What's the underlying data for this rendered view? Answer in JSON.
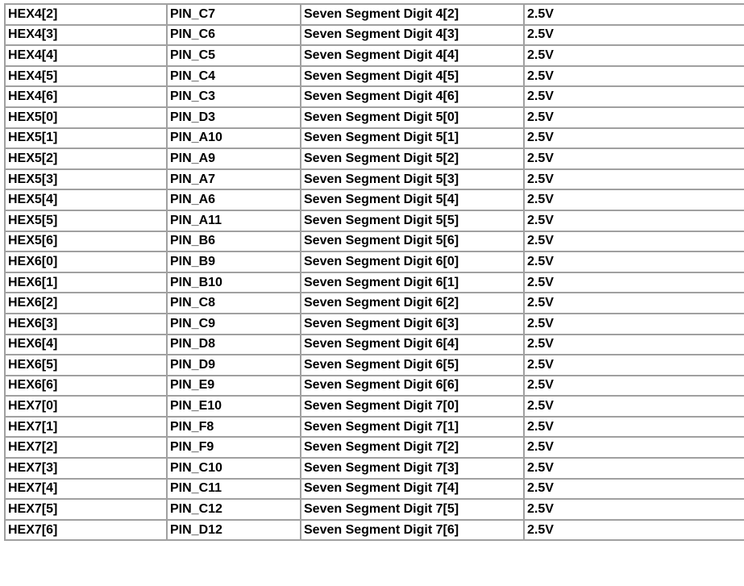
{
  "table": {
    "rows": [
      {
        "signal": "HEX4[2]",
        "pin": "PIN_C7",
        "description": "Seven Segment Digit 4[2]",
        "io_standard": "2.5V"
      },
      {
        "signal": "HEX4[3]",
        "pin": "PIN_C6",
        "description": "Seven Segment Digit 4[3]",
        "io_standard": "2.5V"
      },
      {
        "signal": "HEX4[4]",
        "pin": "PIN_C5",
        "description": "Seven Segment Digit 4[4]",
        "io_standard": "2.5V"
      },
      {
        "signal": "HEX4[5]",
        "pin": "PIN_C4",
        "description": "Seven Segment Digit 4[5]",
        "io_standard": "2.5V"
      },
      {
        "signal": "HEX4[6]",
        "pin": "PIN_C3",
        "description": "Seven Segment Digit 4[6]",
        "io_standard": "2.5V"
      },
      {
        "signal": "HEX5[0]",
        "pin": "PIN_D3",
        "description": "Seven Segment Digit 5[0]",
        "io_standard": "2.5V"
      },
      {
        "signal": "HEX5[1]",
        "pin": "PIN_A10",
        "description": "Seven Segment Digit 5[1]",
        "io_standard": "2.5V"
      },
      {
        "signal": "HEX5[2]",
        "pin": "PIN_A9",
        "description": "Seven Segment Digit 5[2]",
        "io_standard": "2.5V"
      },
      {
        "signal": "HEX5[3]",
        "pin": "PIN_A7",
        "description": "Seven Segment Digit 5[3]",
        "io_standard": "2.5V"
      },
      {
        "signal": "HEX5[4]",
        "pin": "PIN_A6",
        "description": "Seven Segment Digit 5[4]",
        "io_standard": "2.5V"
      },
      {
        "signal": "HEX5[5]",
        "pin": "PIN_A11",
        "description": "Seven Segment Digit 5[5]",
        "io_standard": "2.5V"
      },
      {
        "signal": "HEX5[6]",
        "pin": "PIN_B6",
        "description": "Seven Segment Digit 5[6]",
        "io_standard": "2.5V"
      },
      {
        "signal": "HEX6[0]",
        "pin": "PIN_B9",
        "description": "Seven Segment Digit 6[0]",
        "io_standard": "2.5V"
      },
      {
        "signal": "HEX6[1]",
        "pin": "PIN_B10",
        "description": "Seven Segment Digit 6[1]",
        "io_standard": "2.5V"
      },
      {
        "signal": "HEX6[2]",
        "pin": "PIN_C8",
        "description": "Seven Segment Digit 6[2]",
        "io_standard": "2.5V"
      },
      {
        "signal": "HEX6[3]",
        "pin": "PIN_C9",
        "description": "Seven Segment Digit 6[3]",
        "io_standard": "2.5V"
      },
      {
        "signal": "HEX6[4]",
        "pin": "PIN_D8",
        "description": "Seven Segment Digit 6[4]",
        "io_standard": "2.5V"
      },
      {
        "signal": "HEX6[5]",
        "pin": "PIN_D9",
        "description": "Seven Segment Digit 6[5]",
        "io_standard": "2.5V"
      },
      {
        "signal": "HEX6[6]",
        "pin": "PIN_E9",
        "description": "Seven Segment Digit 6[6]",
        "io_standard": "2.5V"
      },
      {
        "signal": "HEX7[0]",
        "pin": "PIN_E10",
        "description": "Seven Segment Digit 7[0]",
        "io_standard": "2.5V"
      },
      {
        "signal": "HEX7[1]",
        "pin": "PIN_F8",
        "description": "Seven Segment Digit 7[1]",
        "io_standard": "2.5V"
      },
      {
        "signal": "HEX7[2]",
        "pin": "PIN_F9",
        "description": "Seven Segment Digit 7[2]",
        "io_standard": "2.5V"
      },
      {
        "signal": "HEX7[3]",
        "pin": "PIN_C10",
        "description": "Seven Segment Digit 7[3]",
        "io_standard": "2.5V"
      },
      {
        "signal": "HEX7[4]",
        "pin": "PIN_C11",
        "description": "Seven Segment Digit 7[4]",
        "io_standard": "2.5V"
      },
      {
        "signal": "HEX7[5]",
        "pin": "PIN_C12",
        "description": "Seven Segment Digit 7[5]",
        "io_standard": "2.5V"
      },
      {
        "signal": "HEX7[6]",
        "pin": "PIN_D12",
        "description": "Seven Segment Digit 7[6]",
        "io_standard": "2.5V"
      }
    ]
  }
}
